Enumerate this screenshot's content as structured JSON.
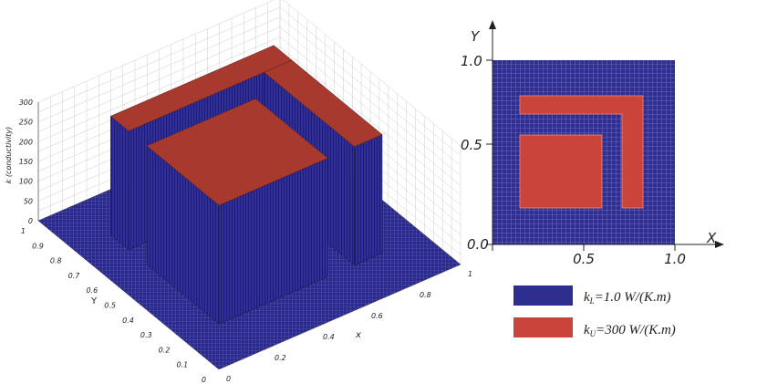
{
  "plot3d": {
    "z_axis_label": "k (conductivity)",
    "y_axis_label": "Y",
    "x_axis_label": "x",
    "zticks": [
      "0",
      "50",
      "100",
      "150",
      "200",
      "250",
      "300"
    ],
    "yticks": [
      "1",
      "0.9",
      "0.8",
      "0.7",
      "0.6",
      "0.5",
      "0.4",
      "0.3",
      "0.2",
      "0.1",
      "0"
    ],
    "xticks": [
      "0",
      "0.2",
      "0.4",
      "0.6",
      "0.8",
      "1"
    ]
  },
  "map": {
    "y_axis_label": "Y",
    "x_axis_label": "X",
    "yticks": [
      "1.0",
      "0.5",
      "0.0"
    ],
    "xticks": [
      "0.5",
      "1.0"
    ]
  },
  "legend": [
    {
      "symbol": "k",
      "subscript": "L",
      "text": "=1.0 W/(K.m)"
    },
    {
      "symbol": "k",
      "subscript": "U",
      "text": "=300 W/(K.m)"
    }
  ]
}
